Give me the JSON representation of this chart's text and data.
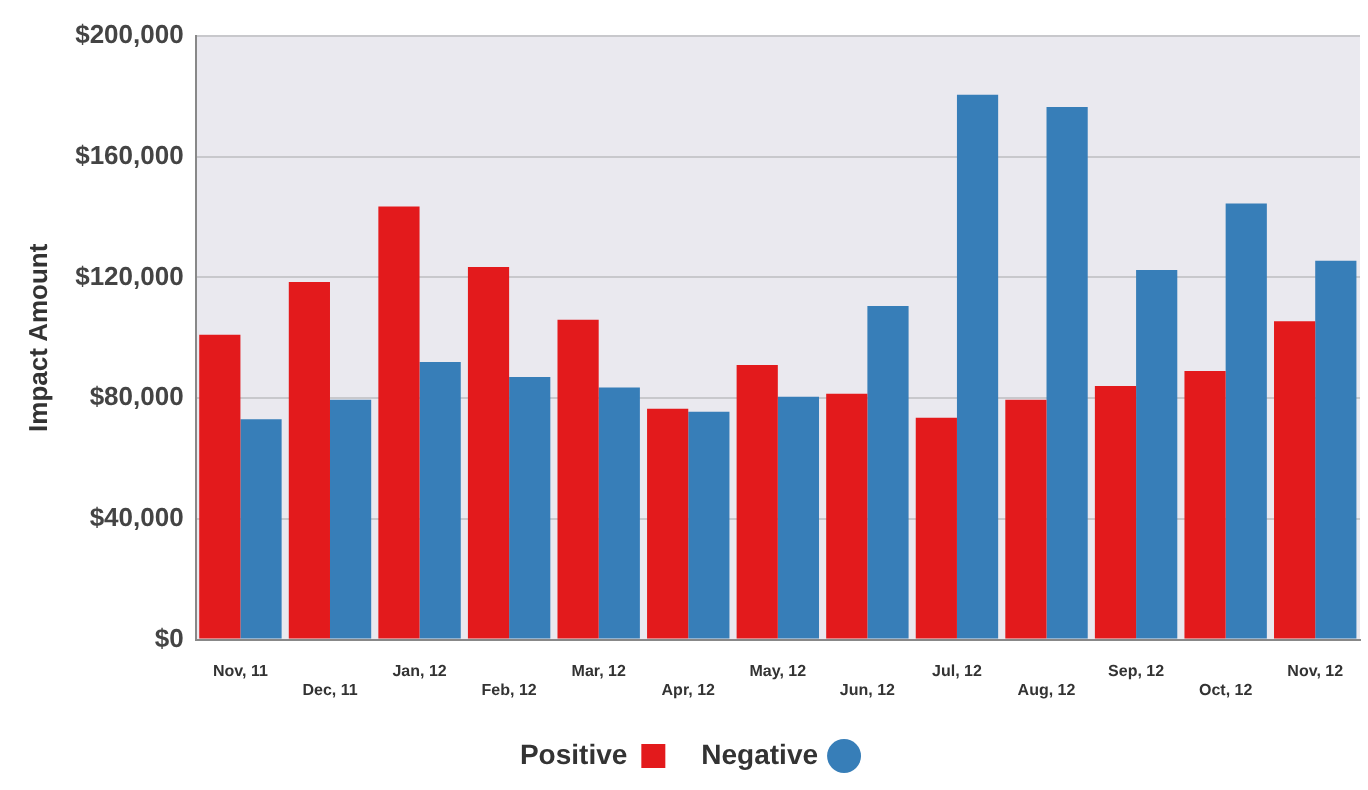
{
  "chart_data": {
    "type": "bar",
    "ylabel": "Impact Amount",
    "categories": [
      "Nov, 11",
      "Dec, 11",
      "Jan, 12",
      "Feb, 12",
      "Mar, 12",
      "Apr, 12",
      "May, 12",
      "Jun, 12",
      "Jul, 12",
      "Aug, 12",
      "Sep, 12",
      "Oct, 12",
      "Nov, 12"
    ],
    "series": [
      {
        "name": "Positive",
        "color": "#e31a1c",
        "marker": "square",
        "values": [
          101000,
          118500,
          143500,
          123500,
          106000,
          76500,
          91000,
          81500,
          73500,
          79500,
          84000,
          89000,
          105500
        ]
      },
      {
        "name": "Negative",
        "color": "#377eb8",
        "marker": "circle",
        "values": [
          73000,
          79500,
          92000,
          87000,
          83500,
          75500,
          80500,
          110500,
          180500,
          176500,
          122500,
          144500,
          125500
        ]
      }
    ],
    "ylim": [
      0,
      200000
    ],
    "yticks": [
      {
        "value": 0,
        "label": "$0"
      },
      {
        "value": 40000,
        "label": "$40,000"
      },
      {
        "value": 80000,
        "label": "$80,000"
      },
      {
        "value": 120000,
        "label": "$120,000"
      },
      {
        "value": 160000,
        "label": "$160,000"
      },
      {
        "value": 200000,
        "label": "$200,000"
      }
    ],
    "grid": "y",
    "legend": "bottom"
  }
}
